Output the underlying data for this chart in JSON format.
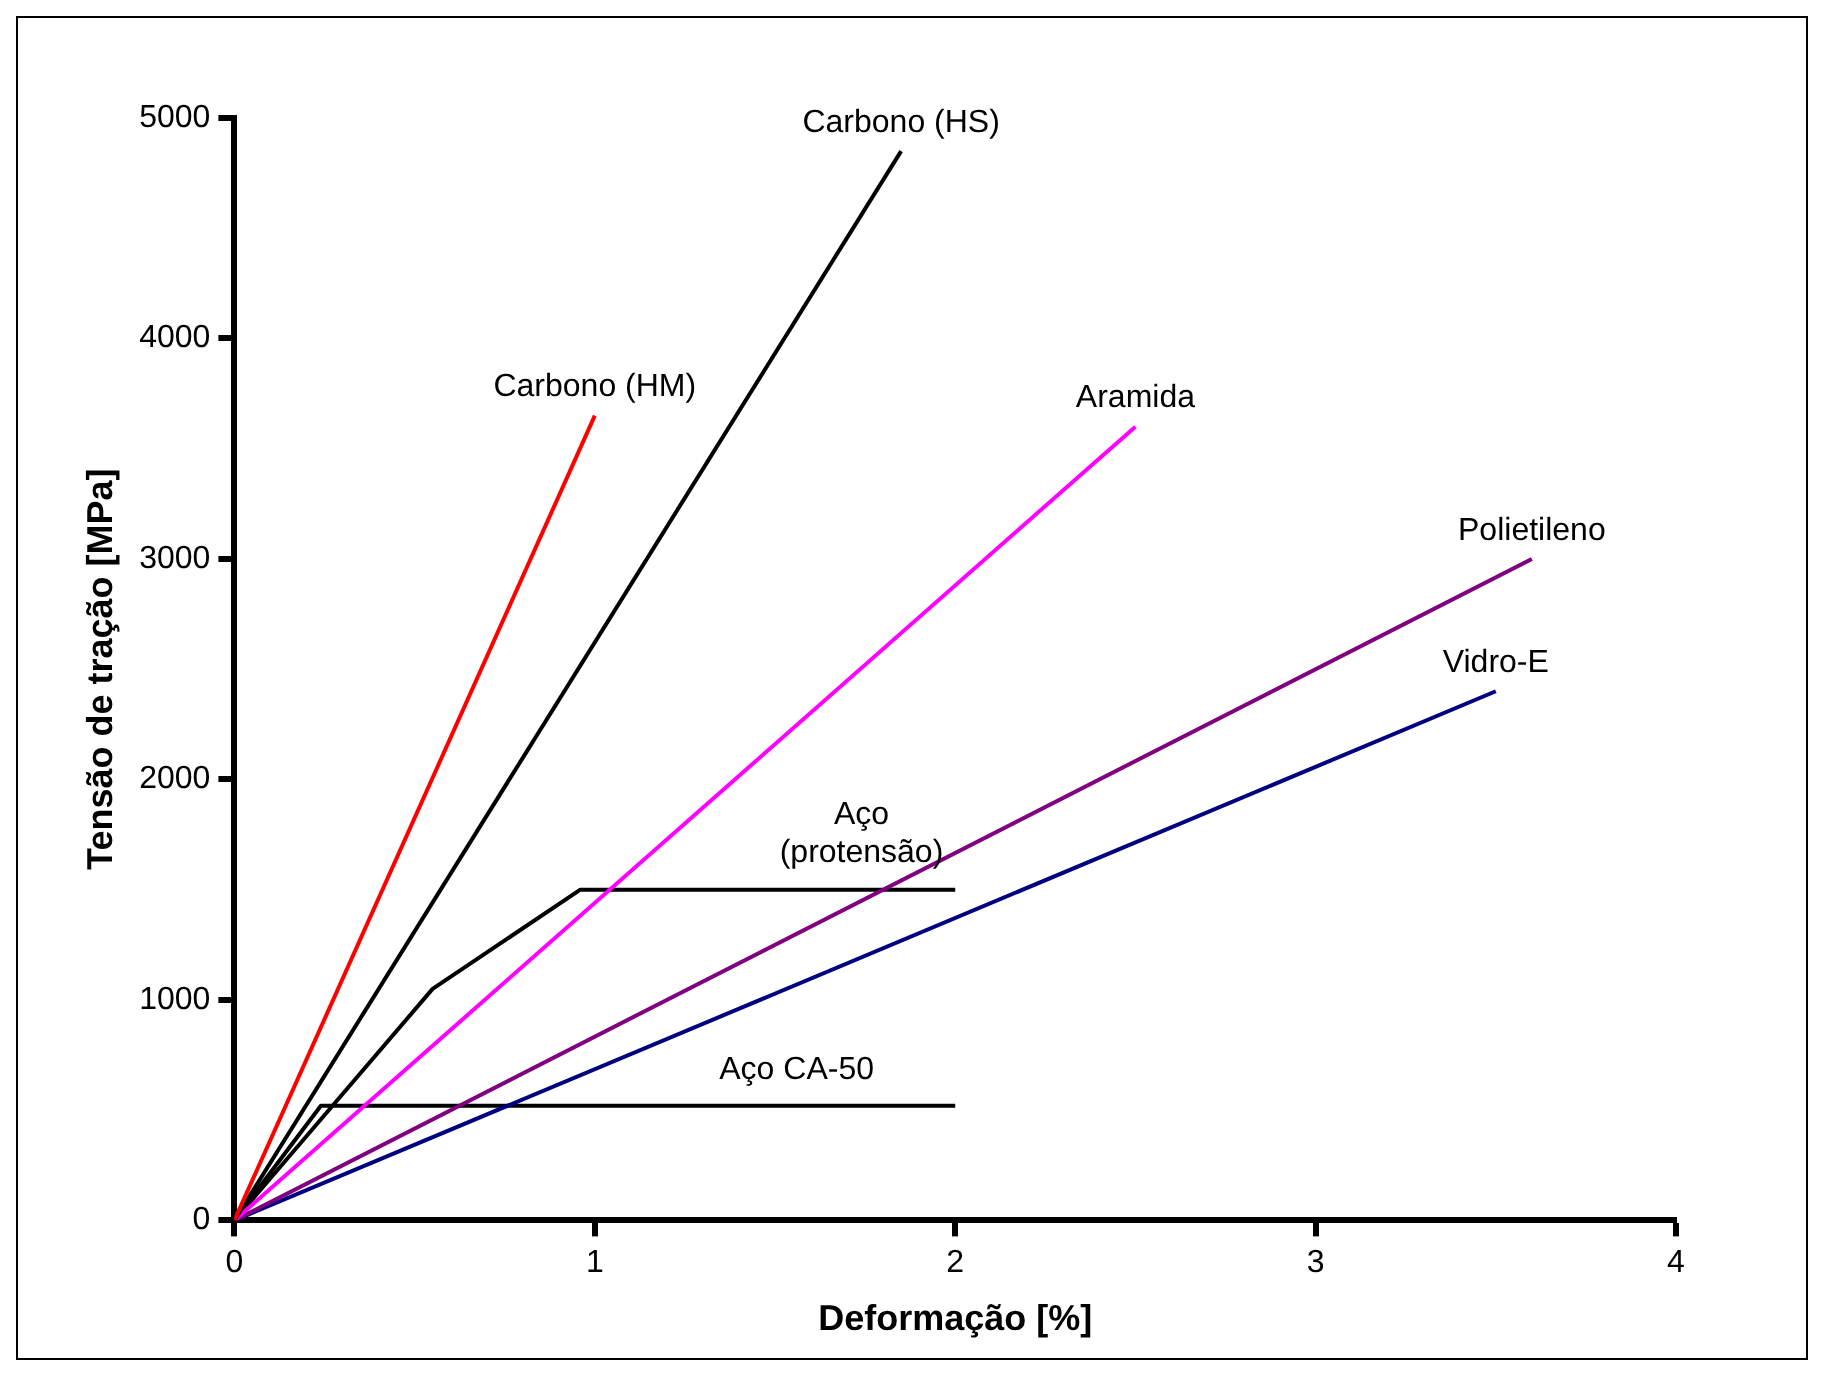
{
  "chart_data": {
    "type": "line",
    "xlabel": "Deformação [%]",
    "ylabel": "Tensão de tração [MPa]",
    "xlim": [
      0,
      4
    ],
    "xticks": [
      0,
      1,
      2,
      3,
      4
    ],
    "ylim": [
      0,
      5000
    ],
    "yticks": [
      0,
      1000,
      2000,
      3000,
      4000,
      5000
    ],
    "grid": false,
    "legend": false,
    "marker": "none",
    "line_style": "solid",
    "series": [
      {
        "name": "Carbono (HM)",
        "color": "#ff0000",
        "x": [
          0,
          1.0
        ],
        "values": [
          0,
          3650
        ]
      },
      {
        "name": "Carbono (HS)",
        "color": "#000000",
        "x": [
          0,
          1.85
        ],
        "values": [
          0,
          4850
        ]
      },
      {
        "name": "Aramida",
        "color": "#ff00ff",
        "x": [
          0,
          2.5
        ],
        "values": [
          0,
          3600
        ]
      },
      {
        "name": "Polietileno",
        "color": "#800080",
        "x": [
          0,
          3.6
        ],
        "values": [
          0,
          3000
        ]
      },
      {
        "name": "Vidro-E",
        "color": "#000080",
        "x": [
          0,
          3.5
        ],
        "values": [
          0,
          2400
        ]
      },
      {
        "name": "Aço (protensão)",
        "color": "#000000",
        "x": [
          0,
          0.55,
          0.96,
          2.0
        ],
        "values": [
          0,
          1050,
          1500,
          1500
        ]
      },
      {
        "name": "Aço CA-50",
        "color": "#000000",
        "x": [
          0,
          0.24,
          2.0
        ],
        "values": [
          0,
          520,
          520
        ]
      }
    ]
  }
}
